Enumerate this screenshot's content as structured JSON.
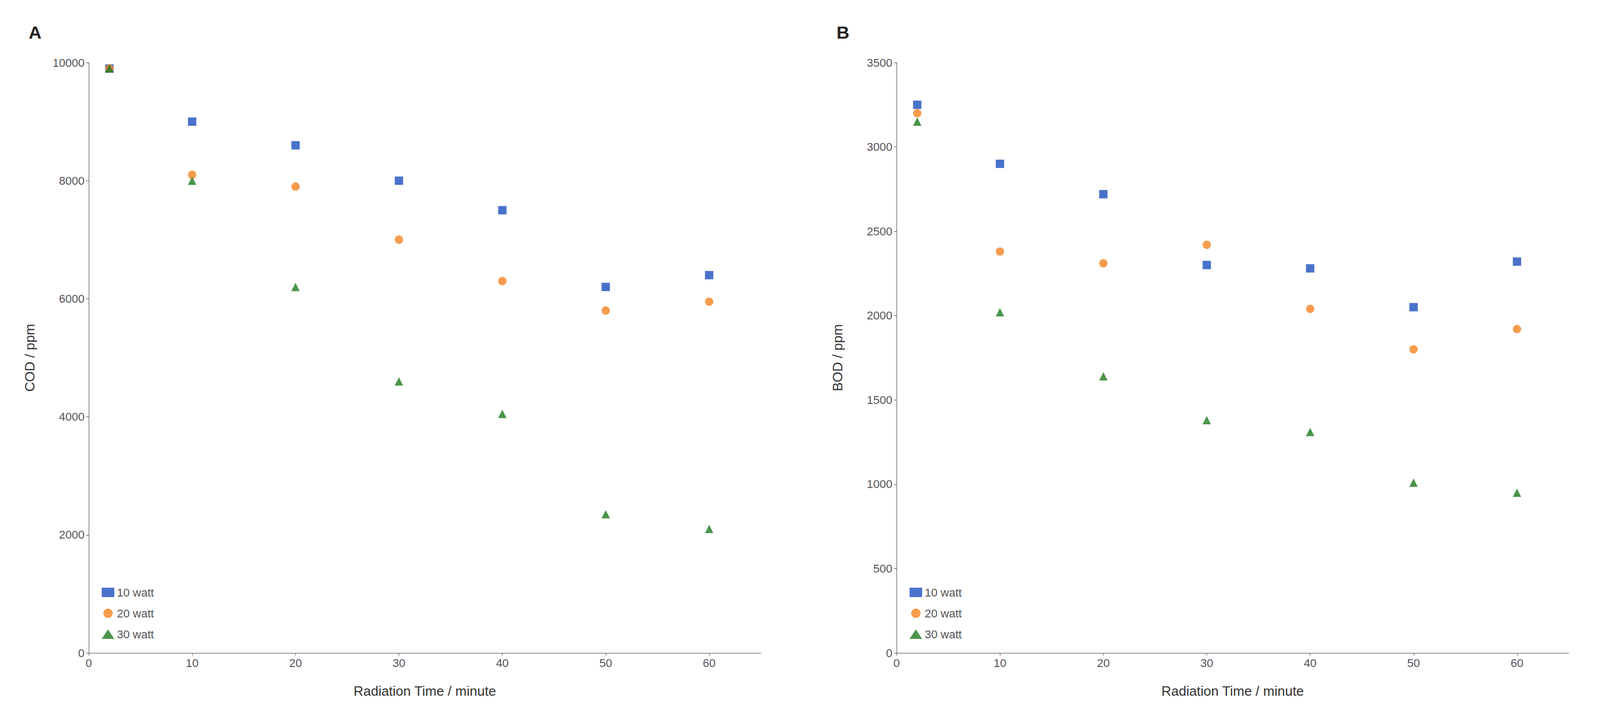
{
  "chart_data": [
    {
      "type": "scatter",
      "title": "A",
      "xlabel": "Radiation Time / minute",
      "ylabel": "COD / ppm",
      "xlim": [
        0,
        65
      ],
      "xticks": [
        0,
        10,
        20,
        30,
        40,
        50,
        60
      ],
      "ylim": [
        0,
        10000
      ],
      "yticks": [
        0,
        2000,
        4000,
        6000,
        8000,
        10000
      ],
      "grid": false,
      "legend": "lower left",
      "series": [
        {
          "name": "10 watt",
          "color": "#1b4fbe",
          "marker": "square",
          "x": [
            2,
            10,
            20,
            30,
            40,
            50,
            60
          ],
          "values": [
            9900,
            9000,
            8600,
            8000,
            7500,
            6200,
            6400
          ]
        },
        {
          "name": "20 watt",
          "color": "#f58320",
          "marker": "circle",
          "x": [
            2,
            10,
            20,
            30,
            40,
            50,
            60
          ],
          "values": [
            9900,
            8100,
            7900,
            7000,
            6300,
            5800,
            5950
          ]
        },
        {
          "name": "30 watt",
          "color": "#1c7a1c",
          "marker": "triangle",
          "x": [
            2,
            10,
            20,
            30,
            40,
            50,
            60
          ],
          "values": [
            9900,
            8000,
            6200,
            4600,
            4050,
            2350,
            2100
          ]
        }
      ]
    },
    {
      "type": "scatter",
      "title": "B",
      "xlabel": "Radiation Time / minute",
      "ylabel": "BOD / ppm",
      "xlim": [
        0,
        65
      ],
      "xticks": [
        0,
        10,
        20,
        30,
        40,
        50,
        60
      ],
      "ylim": [
        0,
        3500
      ],
      "yticks": [
        0,
        500,
        1000,
        1500,
        2000,
        2500,
        3000,
        3500
      ],
      "grid": false,
      "legend": "lower left",
      "series": [
        {
          "name": "10 watt",
          "color": "#1b4fbe",
          "marker": "square",
          "x": [
            2,
            10,
            20,
            30,
            40,
            50,
            60
          ],
          "values": [
            3250,
            2900,
            2720,
            2300,
            2280,
            2050,
            2320
          ]
        },
        {
          "name": "20 watt",
          "color": "#f58320",
          "marker": "circle",
          "x": [
            2,
            10,
            20,
            30,
            40,
            50,
            60
          ],
          "values": [
            3200,
            2380,
            2310,
            2420,
            2040,
            1800,
            1920
          ]
        },
        {
          "name": "30 watt",
          "color": "#1c7a1c",
          "marker": "triangle",
          "x": [
            2,
            10,
            20,
            30,
            40,
            50,
            60
          ],
          "values": [
            3150,
            2020,
            1640,
            1380,
            1310,
            1010,
            950
          ]
        }
      ]
    }
  ]
}
